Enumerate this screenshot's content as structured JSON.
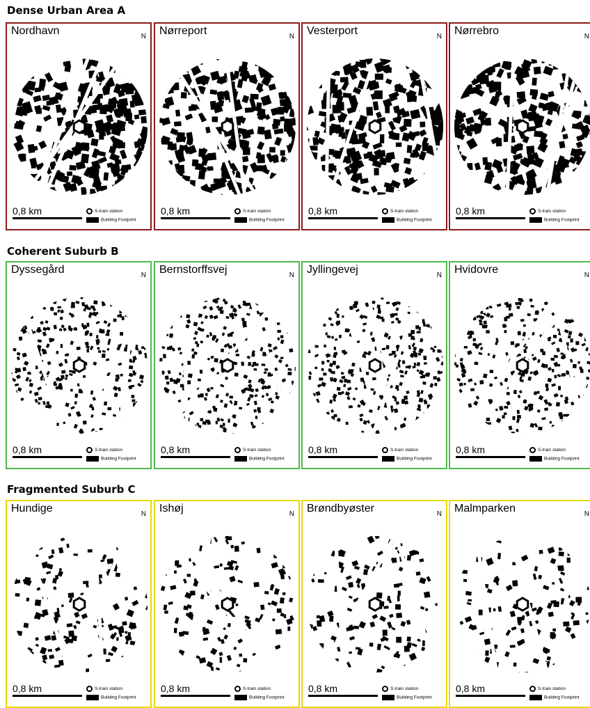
{
  "north_symbol": "N",
  "colors": {
    "dense": "#8b1a1a",
    "coherent": "#4cb84c",
    "fragmented": "#e8d800"
  },
  "groups": [
    {
      "title": "Dense Urban Area A",
      "border_color": "#8b1a1a",
      "density": "dense",
      "panels": [
        {
          "name": "Nordhavn",
          "scale": "0,8 km",
          "station_label": "S-train station",
          "footprint_label": "Building Footprint"
        },
        {
          "name": "Nørreport",
          "scale": "0,8 km",
          "station_label": "S-train station",
          "footprint_label": "Building Footprint"
        },
        {
          "name": "Vesterport",
          "scale": "0,8 km",
          "station_label": "S-train station",
          "footprint_label": "Building Footprint"
        },
        {
          "name": "Nørrebro",
          "scale": "0,8 km",
          "station_label": "S-train station",
          "footprint_label": "Building Footprint"
        }
      ]
    },
    {
      "title": "Coherent Suburb B",
      "border_color": "#4cb84c",
      "density": "medium",
      "panels": [
        {
          "name": "Dyssegård",
          "scale": "0,8 km",
          "station_label": "S-train station",
          "footprint_label": "Building Footprint"
        },
        {
          "name": "Bernstorffsvej",
          "scale": "0,8 km",
          "station_label": "S-train station",
          "footprint_label": "Building Footprint"
        },
        {
          "name": "Jyllingevej",
          "scale": "0,8 km",
          "station_label": "S-train station",
          "footprint_label": "Building Footprint"
        },
        {
          "name": "Hvidovre",
          "scale": "0,8 km",
          "station_label": "S-train station",
          "footprint_label": "Building Footprint"
        }
      ]
    },
    {
      "title": "Fragmented Suburb C",
      "border_color": "#e8d800",
      "density": "sparse",
      "panels": [
        {
          "name": "Hundige",
          "scale": "0,8 km",
          "station_label": "S-train station",
          "footprint_label": "Building Footprint"
        },
        {
          "name": "Ishøj",
          "scale": "0,8 km",
          "station_label": "S-train station",
          "footprint_label": "Building Footprint"
        },
        {
          "name": "Brøndbyøster",
          "scale": "0,8 km",
          "station_label": "S-train station",
          "footprint_label": "Building Footprint"
        },
        {
          "name": "Malmparken",
          "scale": "0,8 km",
          "station_label": "S-train station",
          "footprint_label": "Building Footprint"
        }
      ]
    }
  ]
}
